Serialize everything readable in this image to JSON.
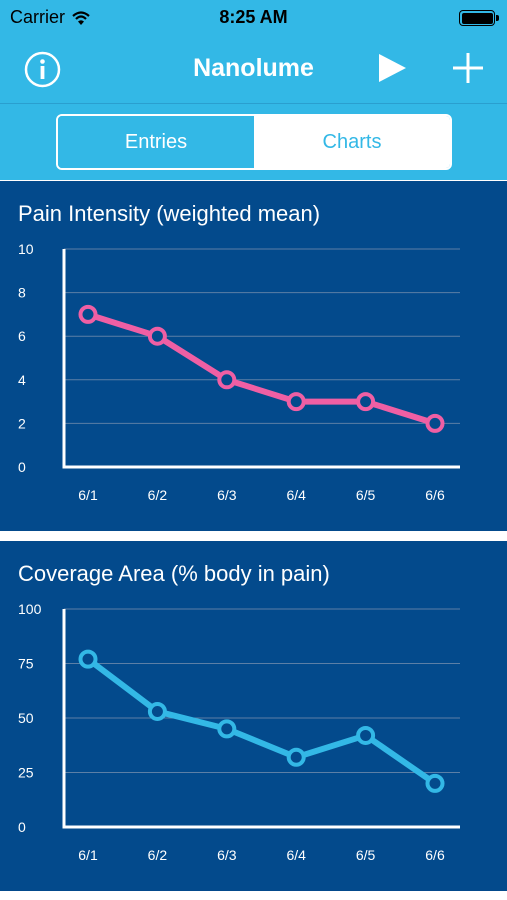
{
  "status_bar": {
    "carrier": "Carrier",
    "time": "8:25 AM"
  },
  "nav": {
    "title": "Nanolume",
    "info_icon": "info-icon",
    "play_icon": "play-icon",
    "add_icon": "plus-icon"
  },
  "segments": {
    "entries": "Entries",
    "charts": "Charts",
    "selected": "Charts"
  },
  "colors": {
    "bar": "#33b8e6",
    "panel": "#034a8c",
    "pain_line": "#ef5fa4",
    "coverage_line": "#33b8e6"
  },
  "chart_data": [
    {
      "type": "line",
      "title": "Pain Intensity (weighted mean)",
      "categories": [
        "6/1",
        "6/2",
        "6/3",
        "6/4",
        "6/5",
        "6/6"
      ],
      "values": [
        7,
        6,
        4,
        3,
        3,
        2
      ],
      "ylim": [
        0,
        10
      ],
      "yticks": [
        "0",
        "2",
        "4",
        "6",
        "8",
        "10"
      ],
      "grid": true
    },
    {
      "type": "line",
      "title": "Coverage Area (% body in pain)",
      "categories": [
        "6/1",
        "6/2",
        "6/3",
        "6/4",
        "6/5",
        "6/6"
      ],
      "values": [
        77,
        53,
        45,
        32,
        42,
        20
      ],
      "ylim": [
        0,
        100
      ],
      "yticks": [
        "0",
        "25",
        "50",
        "75",
        "100"
      ],
      "grid": true
    }
  ]
}
